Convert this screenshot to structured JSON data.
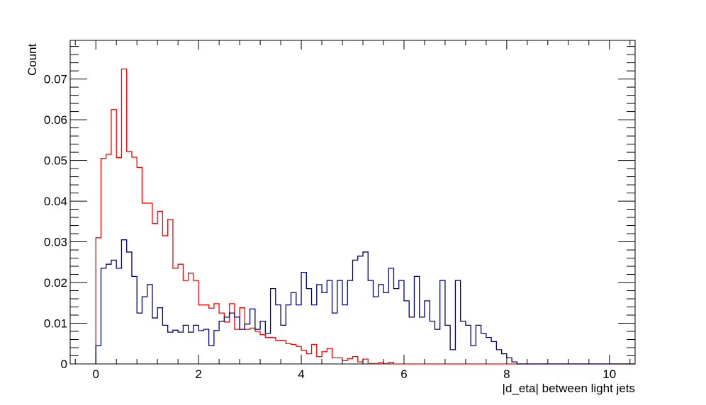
{
  "chart_data": {
    "type": "histogram",
    "xlabel": "|d_eta| between light jets",
    "ylabel": "Count",
    "xlim": [
      -0.5,
      10.5
    ],
    "ylim": [
      0,
      0.0795
    ],
    "bin_width": 0.1,
    "x_start": 0,
    "x_ticks": [
      0,
      2,
      4,
      6,
      8,
      10
    ],
    "x_tick_labels": [
      "0",
      "2",
      "4",
      "6",
      "8",
      "10"
    ],
    "y_ticks": [
      0,
      0.01,
      0.02,
      0.03,
      0.04,
      0.05,
      0.06,
      0.07
    ],
    "y_tick_labels": [
      "0",
      "0.01",
      "0.02",
      "0.03",
      "0.04",
      "0.05",
      "0.06",
      "0.07"
    ],
    "grid": false,
    "frame_color": "#000000",
    "series": [
      {
        "color": "#ff0000",
        "values": [
          0.031,
          0.0505,
          0.0515,
          0.0625,
          0.0507,
          0.0725,
          0.0522,
          0.0508,
          0.0483,
          0.0395,
          0.0395,
          0.0345,
          0.0375,
          0.0315,
          0.0355,
          0.0235,
          0.0245,
          0.0205,
          0.0223,
          0.0205,
          0.0145,
          0.0145,
          0.0137,
          0.0148,
          0.0125,
          0.0103,
          0.0148,
          0.0085,
          0.0138,
          0.0085,
          0.0088,
          0.008,
          0.0072,
          0.0065,
          0.0065,
          0.0058,
          0.0058,
          0.005,
          0.0048,
          0.0043,
          0.0033,
          0.0025,
          0.0048,
          0.0018,
          0.003,
          0.0038,
          0.0015,
          0.0015,
          0.0008,
          0.0013,
          0.0018,
          0.0005,
          0.0012,
          0.0001,
          0.0001,
          0.0003,
          0.0001,
          0.0004,
          0,
          0,
          0,
          0,
          0,
          0,
          0,
          0,
          0,
          0,
          0,
          0,
          0,
          0,
          0,
          0,
          0,
          0,
          0,
          0,
          0,
          0,
          0,
          0,
          0,
          0,
          0,
          0,
          0,
          0,
          0,
          0,
          0,
          0,
          0,
          0,
          0,
          0,
          0,
          0,
          0,
          0,
          0,
          0,
          0,
          0,
          0
        ]
      },
      {
        "color": "#00007f",
        "values": [
          0.0045,
          0.0235,
          0.0245,
          0.0255,
          0.0235,
          0.0305,
          0.0275,
          0.0215,
          0.0125,
          0.0165,
          0.0195,
          0.0113,
          0.0138,
          0.0095,
          0.0078,
          0.0083,
          0.0078,
          0.0095,
          0.0078,
          0.0095,
          0.0082,
          0.0085,
          0.0045,
          0.0082,
          0.0105,
          0.0115,
          0.0125,
          0.0115,
          0.0085,
          0.0098,
          0.0135,
          0.0085,
          0.0105,
          0.0075,
          0.0185,
          0.0145,
          0.0095,
          0.0145,
          0.0175,
          0.0145,
          0.0225,
          0.0185,
          0.0145,
          0.0195,
          0.0175,
          0.0205,
          0.0125,
          0.0205,
          0.0145,
          0.0205,
          0.0255,
          0.0265,
          0.0275,
          0.0205,
          0.0165,
          0.0195,
          0.0175,
          0.0235,
          0.0185,
          0.0205,
          0.0155,
          0.0115,
          0.0215,
          0.0115,
          0.0155,
          0.0105,
          0.0085,
          0.0205,
          0.0095,
          0.0035,
          0.0205,
          0.0105,
          0.0095,
          0.0045,
          0.0095,
          0.0075,
          0.0065,
          0.0055,
          0.0035,
          0.0025,
          0.0015,
          0.0005,
          0,
          0,
          0,
          0,
          0,
          0,
          0,
          0,
          0,
          0,
          0,
          0,
          0,
          0,
          0,
          0,
          0,
          0,
          0,
          0,
          0,
          0,
          0
        ]
      }
    ]
  }
}
